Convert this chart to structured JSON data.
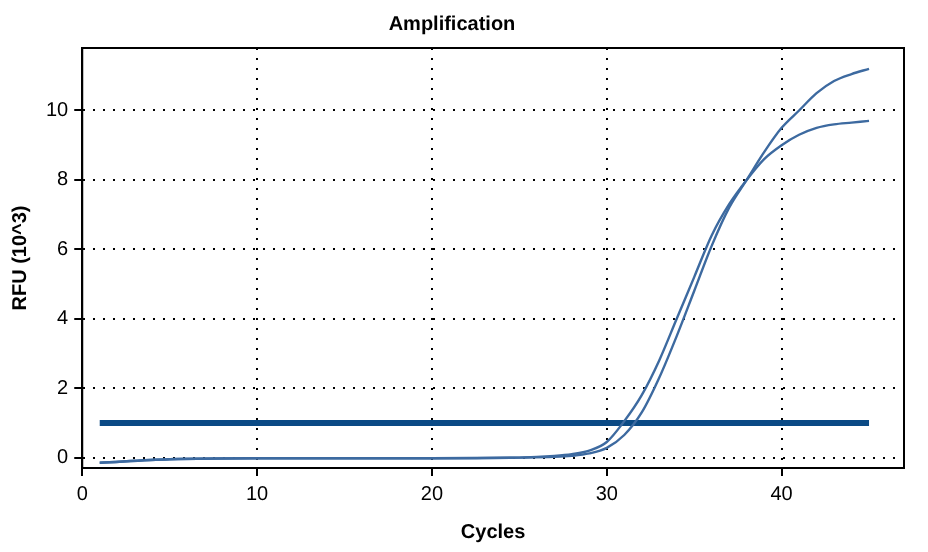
{
  "chart_data": {
    "type": "line",
    "title": "Amplification",
    "xlabel": "Cycles",
    "ylabel": "RFU (10^3)",
    "xlim": [
      0,
      47
    ],
    "xticks": [
      0,
      10,
      20,
      30,
      40
    ],
    "ylim": [
      -0.3,
      11.8
    ],
    "yticks": [
      0,
      2,
      4,
      6,
      8,
      10
    ],
    "grid": true,
    "legend": false,
    "marker": "none",
    "line_style": "solid",
    "series": [
      {
        "color": "#3d6aa0",
        "x": [
          1,
          5,
          10,
          15,
          20,
          25,
          27,
          28,
          29,
          30,
          31,
          32,
          33,
          34,
          35,
          36,
          37,
          38,
          39,
          40,
          41,
          42,
          43,
          44,
          45
        ],
        "values": [
          -0.15,
          -0.05,
          -0.02,
          -0.02,
          -0.02,
          0,
          0.05,
          0.1,
          0.2,
          0.45,
          1.05,
          1.8,
          2.8,
          4.0,
          5.2,
          6.4,
          7.3,
          8.0,
          8.6,
          9.0,
          9.3,
          9.5,
          9.6,
          9.65,
          9.7
        ]
      },
      {
        "color": "#3d6aa0",
        "x": [
          1,
          5,
          10,
          15,
          20,
          25,
          27,
          28,
          29,
          30,
          31,
          32,
          33,
          34,
          35,
          36,
          37,
          38,
          39,
          40,
          41,
          42,
          43,
          44,
          45
        ],
        "values": [
          -0.15,
          -0.05,
          -0.02,
          -0.02,
          -0.02,
          0,
          0.02,
          0.05,
          0.12,
          0.28,
          0.65,
          1.3,
          2.3,
          3.5,
          4.8,
          6.1,
          7.2,
          8.0,
          8.8,
          9.5,
          10.0,
          10.5,
          10.85,
          11.05,
          11.2
        ]
      },
      {
        "color": "#0b4a85",
        "x": [
          1,
          45
        ],
        "values": [
          1,
          1
        ]
      }
    ]
  }
}
